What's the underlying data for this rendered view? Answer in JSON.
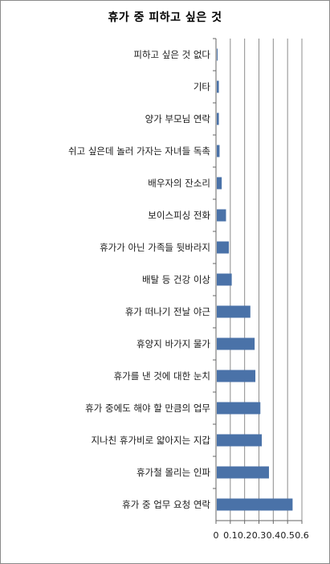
{
  "chart_data": {
    "type": "bar",
    "orientation": "horizontal",
    "title": "휴가 중 피하고 싶은 것",
    "xlabel": "",
    "ylabel": "",
    "xlim": [
      0,
      0.6
    ],
    "xticks": [
      "0",
      "0.1",
      "0.2",
      "0.3",
      "0.4",
      "0.5",
      "0.6"
    ],
    "grid": true,
    "legend": "none",
    "bar_color": "#4a72a8",
    "categories": [
      "피하고 싶은 것 없다",
      "기타",
      "양가 부모님 연락",
      "쉬고 싶은데 놀러 가자는 자녀들 독촉",
      "배우자의 잔소리",
      "보이스피싱 전화",
      "휴가가 아닌 가족들 뒷바라지",
      "배탈 등 건강 이상",
      "휴가 떠나기 전날 야근",
      "휴양지 바가지 물가",
      "휴가를 낸 것에 대한 눈치",
      "휴가 중에도 해야 할 만큼의 업무",
      "지나친 휴가비로 얇아지는 지갑",
      "휴가철 몰리는 인파",
      "휴가 중 업무 요청 연락"
    ],
    "values": [
      0.01,
      0.02,
      0.02,
      0.025,
      0.04,
      0.07,
      0.09,
      0.11,
      0.24,
      0.27,
      0.275,
      0.31,
      0.32,
      0.37,
      0.535
    ]
  }
}
